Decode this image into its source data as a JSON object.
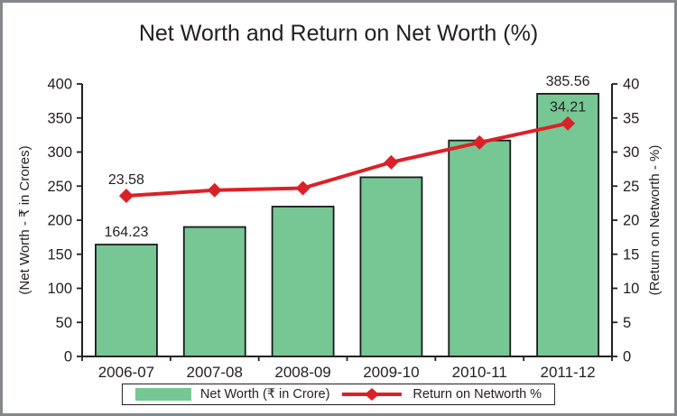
{
  "chart_data": {
    "type": "bar+line",
    "title": "Net Worth and Return on Net Worth (%)",
    "categories": [
      "2006-07",
      "2007-08",
      "2008-09",
      "2009-10",
      "2010-11",
      "2011-12"
    ],
    "series": [
      {
        "name": "Net Worth (₹ in Crore)",
        "type": "bar",
        "axis": "left",
        "values": [
          164.23,
          190,
          220,
          263,
          317,
          385.56
        ],
        "point_labels": [
          "164.23",
          "",
          "",
          "",
          "",
          "385.56"
        ],
        "color": "#76c794",
        "border_color": "#1a1a1a"
      },
      {
        "name": "Return on Networth %",
        "type": "line",
        "axis": "right",
        "values": [
          23.58,
          24.4,
          24.7,
          28.5,
          31.4,
          34.21
        ],
        "point_labels": [
          "23.58",
          "",
          "",
          "",
          "",
          "34.21"
        ],
        "color": "#db2128",
        "marker": "diamond"
      }
    ],
    "left_axis": {
      "title": "(Net Worth - ₹ in Crores)",
      "min": 0,
      "max": 400,
      "step": 50
    },
    "right_axis": {
      "title": "(Return on Networth - %)",
      "min": 0,
      "max": 40,
      "step": 5
    },
    "grid": false,
    "legend_position": "bottom"
  },
  "legend": {
    "networth_label": "Net Worth (₹ in Crore)",
    "return_label": "Return on Networth %"
  },
  "colors": {
    "bar_fill": "#76c794",
    "line_red": "#db2128",
    "axis_text": "#231f20",
    "frame_border": "#85878a"
  }
}
